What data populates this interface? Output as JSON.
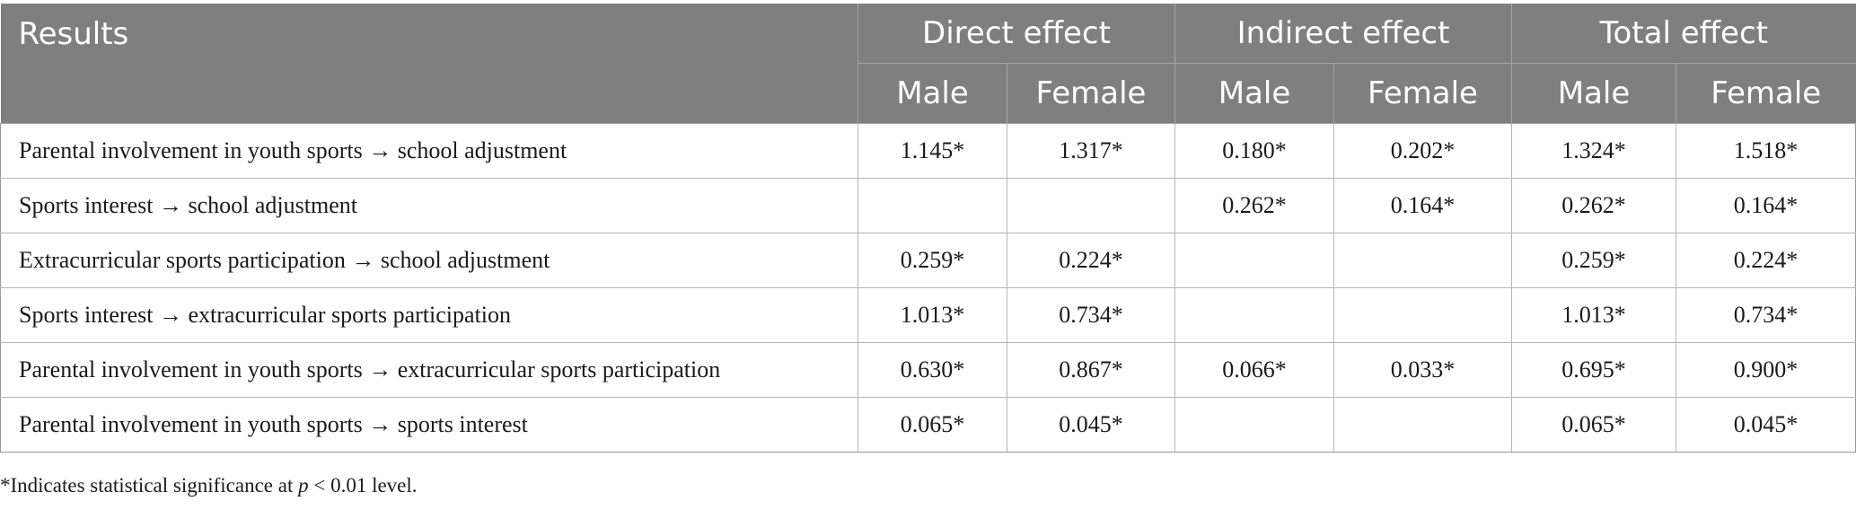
{
  "table": {
    "corner_label": "Results",
    "groups": [
      "Direct effect",
      "Indirect effect",
      "Total effect"
    ],
    "subheaders": [
      "Male",
      "Female",
      "Male",
      "Female",
      "Male",
      "Female"
    ],
    "rows": [
      {
        "label": "Parental involvement in youth sports → school adjustment",
        "cells": [
          "1.145*",
          "1.317*",
          "0.180*",
          "0.202*",
          "1.324*",
          "1.518*"
        ]
      },
      {
        "label": "Sports interest → school adjustment",
        "cells": [
          "",
          "",
          "0.262*",
          "0.164*",
          "0.262*",
          "0.164*"
        ]
      },
      {
        "label": "Extracurricular sports participation → school adjustment",
        "cells": [
          "0.259*",
          "0.224*",
          "",
          "",
          "0.259*",
          "0.224*"
        ]
      },
      {
        "label": "Sports interest → extracurricular sports participation",
        "cells": [
          "1.013*",
          "0.734*",
          "",
          "",
          "1.013*",
          "0.734*"
        ]
      },
      {
        "label": "Parental involvement in youth sports → extracurricular sports participation",
        "cells": [
          "0.630*",
          "0.867*",
          "0.066*",
          "0.033*",
          "0.695*",
          "0.900*"
        ]
      },
      {
        "label": "Parental involvement in youth sports → sports interest",
        "cells": [
          "0.065*",
          "0.045*",
          "",
          "",
          "0.065*",
          "0.045*"
        ]
      }
    ]
  },
  "footnote": {
    "before": "*Indicates statistical significance at ",
    "italic": "p",
    "after": " < 0.01 level."
  }
}
